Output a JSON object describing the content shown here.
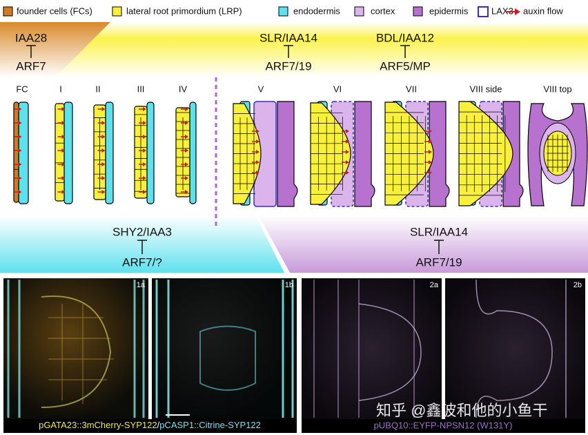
{
  "legend": {
    "items": [
      "founder cells (FCs)",
      "lateral root primordium (LRP)",
      "endodermis",
      "cortex",
      "epidermis",
      "LAX3",
      "auxin flow"
    ]
  },
  "regulators": {
    "top": [
      {
        "repressor": "IAA28",
        "target": "ARF7"
      },
      {
        "repressor": "SLR/IAA14",
        "target": "ARF7/19"
      },
      {
        "repressor": "BDL/IAA12",
        "target": "ARF5/MP"
      }
    ],
    "bottom": [
      {
        "repressor": "SHY2/IAA3",
        "target": "ARF7/?"
      },
      {
        "repressor": "SLR/IAA14",
        "target": "ARF7/19"
      }
    ]
  },
  "stages": [
    "FC",
    "I",
    "II",
    "III",
    "IV",
    "V",
    "VI",
    "VII",
    "VIII side",
    "VIII top"
  ],
  "panels": {
    "labels": [
      "1a",
      "1b",
      "2a",
      "2b"
    ],
    "captions": {
      "left": [
        "pGATA23::3mCherry-SYP122",
        "/",
        "pCASP1::Citrine-SYP122"
      ],
      "right": "pUBQ10::EYFP-NPSN12 (W131Y)"
    }
  },
  "watermark": "知乎 @鑫波和他的小鱼干"
}
